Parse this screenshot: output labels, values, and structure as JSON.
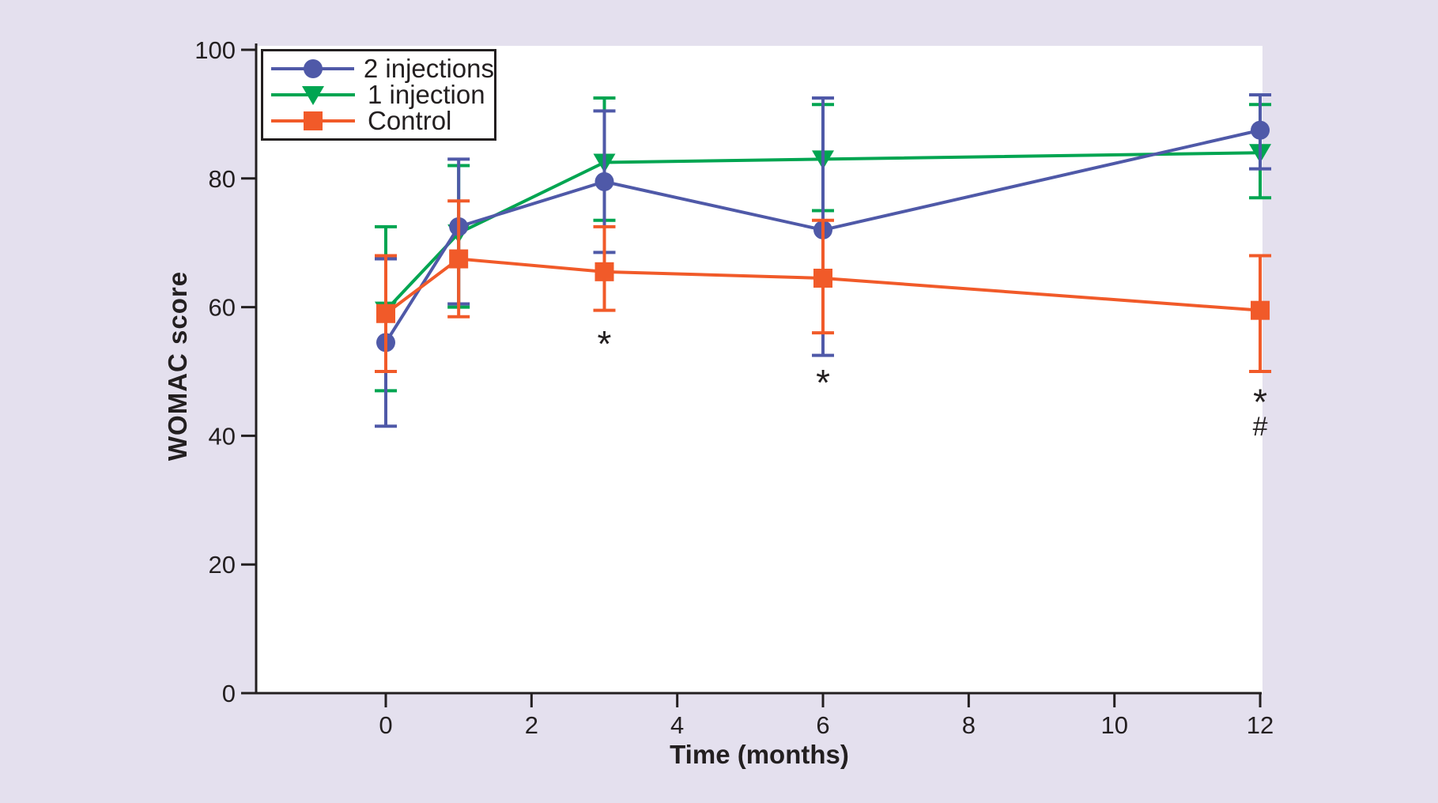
{
  "figure": {
    "background_color": "#e4e0ee",
    "plot_background_color": "#ffffff",
    "axis_color": "#231f20",
    "text_color": "#231f20"
  },
  "chart_data": {
    "type": "line",
    "title": "",
    "xlabel": "Time (months)",
    "ylabel": "WOMAC score",
    "xlim": [
      -1.8,
      12
    ],
    "ylim": [
      0,
      100
    ],
    "x_ticks": [
      0,
      2,
      4,
      6,
      8,
      10,
      12
    ],
    "y_ticks": [
      0,
      20,
      40,
      60,
      80,
      100
    ],
    "grid": false,
    "legend_position": "top-left",
    "x": [
      0,
      1,
      3,
      6,
      12
    ],
    "series": [
      {
        "name": "2 injections",
        "color": "#4f59a8",
        "marker": "circle",
        "values": [
          54.5,
          72.5,
          79.5,
          72,
          87.5
        ],
        "error_low": [
          41.5,
          60.5,
          68.5,
          52.5,
          81.5
        ],
        "error_high": [
          67.5,
          83,
          90.5,
          92.5,
          93
        ]
      },
      {
        "name": "1 injection",
        "color": "#00a551",
        "marker": "triangle-down",
        "values": [
          59.5,
          71.5,
          82.5,
          83,
          84
        ],
        "error_low": [
          47,
          60,
          73.5,
          75,
          77
        ],
        "error_high": [
          72.5,
          82,
          92.5,
          91.5,
          91.5
        ]
      },
      {
        "name": "Control",
        "color": "#f15a29",
        "marker": "square",
        "values": [
          59,
          67.5,
          65.5,
          64.5,
          59.5
        ],
        "error_low": [
          50,
          58.5,
          59.5,
          56,
          50
        ],
        "error_high": [
          68,
          76.5,
          72.5,
          73.5,
          68
        ]
      }
    ],
    "annotations": [
      {
        "text": "*",
        "x": 3,
        "y": 55.5
      },
      {
        "text": "*",
        "x": 6,
        "y": 49.5
      },
      {
        "text": "*",
        "x": 12,
        "y": 46.5
      },
      {
        "text": "#",
        "x": 12,
        "y": 41.5
      }
    ]
  }
}
